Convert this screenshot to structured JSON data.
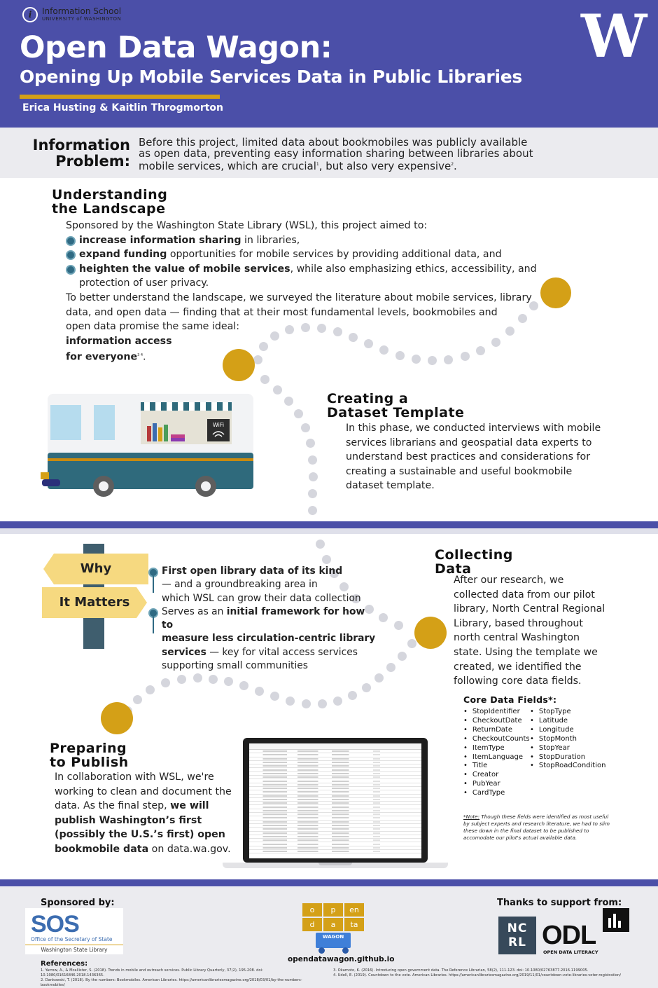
{
  "header": {
    "school_line1": "Information School",
    "school_line2": "UNIVERSITY of WASHINGTON",
    "title": "Open Data Wagon:",
    "subtitle": "Opening Up Mobile Services Data in Public Libraries",
    "authors": "Erica Husting & Kaitlin Throgmorton",
    "uw_logo": "W"
  },
  "problem": {
    "label_line1": "Information",
    "label_line2": "Problem:",
    "text_line1": "Before this project, limited data about bookmobiles was publicly available",
    "text_line2": "as open data, preventing easy information sharing between libraries about",
    "text_line3": "mobile services, which are crucial",
    "sup1": "1",
    "text_mid": ", but also very expensive",
    "sup2": "2",
    "text_end": "."
  },
  "landscape": {
    "title_line1": "Understanding",
    "title_line2": "the Landscape",
    "intro": "Sponsored by the Washington State Library (WSL), this project aimed to:",
    "b1_bold": "increase information sharing",
    "b1_rest": " in libraries,",
    "b2_bold": "expand funding",
    "b2_rest": " opportunities for mobile services by providing additional data, and",
    "b3_bold": "heighten the value of mobile services",
    "b3_rest": ", while also emphasizing ethics, accessibility, and",
    "b3_cont": "protection of user privacy.",
    "p2_line1": "To better understand the landscape, we surveyed the literature about mobile services, library",
    "p2_line2": "data, and open data — finding that at their most fundamental levels, bookmobiles and",
    "p2_line3": "open data promise the same ideal:",
    "p2_bold1": "information access",
    "p2_bold2": "for everyone",
    "p2_sup": "3 4",
    "p2_end": "."
  },
  "template": {
    "title_line1": "Creating a",
    "title_line2": "Dataset Template",
    "line1": "In this phase, we conducted interviews with mobile",
    "line2": "services librarians and geospatial data experts to",
    "line3": "understand best practices and considerations for",
    "line4": "creating a sustainable and useful bookmobile",
    "line5": "dataset template."
  },
  "bus": {
    "wifi_label": "WiFi"
  },
  "why": {
    "sign1": "Why",
    "sign2": "It Matters",
    "p1_bold": "First open library data of its kind",
    "p1_l2": "— and a groundbreaking area in",
    "p1_l3": "which WSL can grow their data collection",
    "p2_start": "Serves as an ",
    "p2_bold1": "initial framework for how to",
    "p2_bold2": "measure less circulation-centric library",
    "p2_bold3": "services",
    "p2_rest": " — key for vital access services",
    "p2_l4": "supporting small communities"
  },
  "collecting": {
    "title_line1": "Collecting",
    "title_line2": "Data",
    "line1": "After our research, we",
    "line2": "collected data from our pilot",
    "line3": "library, North Central Regional",
    "line4": "Library, based throughout",
    "line5": "north central Washington",
    "line6": "state. Using the template we",
    "line7": "created, we identified the",
    "line8": "following core data fields.",
    "fields_title": "Core Data Fields*:",
    "fields_col1": [
      "StopIdentifier",
      "CheckoutDate",
      "ReturnDate",
      "CheckoutCounts",
      "ItemType",
      "ItemLanguage",
      "Title",
      "Creator",
      "PubYear",
      "CardType"
    ],
    "fields_col2": [
      "StopType",
      "Latitude",
      "Longitude",
      "StopMonth",
      "StopYear",
      "StopDuration",
      "StopRoadCondition"
    ],
    "note_label": "*Note:",
    "note_l1": " Though these fields were identified as most useful",
    "note_l2": "by subject experts and research literature, we had to slim",
    "note_l3": "these down in the final dataset to be published to",
    "note_l4": "accomodate our pilot's actual available data."
  },
  "publish": {
    "title_line1": "Preparing",
    "title_line2": "to Publish",
    "line1": "In collaboration with WSL, we're",
    "line2": "working to clean and document the",
    "line3_start": "data. As the final step, ",
    "line3_bold": "we will",
    "line4_bold": "publish Washington’s first",
    "line5_bold": "(possibly the U.S.’s first) open",
    "line6_bold": "bookmobile data",
    "line6_rest": " on data.wa.gov."
  },
  "footer": {
    "sponsored_by": "Sponsored by:",
    "sos_text": "SOS",
    "sos_office": "Office of the Secretary of State",
    "sos_library": "Washington State Library",
    "thanks": "Thanks to support from:",
    "ncrl": "NC RL",
    "odl": "ODL",
    "odl_sub": "OPEN DATA LITERACY",
    "od_tiles": [
      "o",
      "p",
      "en",
      "d",
      "a",
      "ta"
    ],
    "wagon_label": "WAGON",
    "site": "opendatawagon.github.io",
    "references_title": "References:",
    "ref1": "1. Yarrow, A., & Mcallister, S. (2018). Trends in mobile and outreach services. Public Library Quarterly, 37(2), 195-208. doi: 10.1080/01616846.2018.1436365.",
    "ref2": "2. Dankowski, T. (2018). By the numbers: Bookmobiles. American Libraries. https://americanlibrariesmagazine.org/2018/03/01/by-the-numbers-bookmobiles/",
    "ref3": "3. Okamoto, K. (2016). Introducing open government data. The Reference Librarian, 58(2), 111-123. doi: 10.1080/02763877.2016.1199005.",
    "ref4": "4. Udell, E. (2019). Countdown to the vote. American Libraries. https://americanlibrariesmagazine.org/2019/11/01/countdown-vote-libraries-voter-registration/"
  },
  "colors": {
    "navy": "#4b4fa8",
    "gold": "#d4a017",
    "teal": "#2f6a83",
    "sign_yellow": "#f6d980"
  }
}
